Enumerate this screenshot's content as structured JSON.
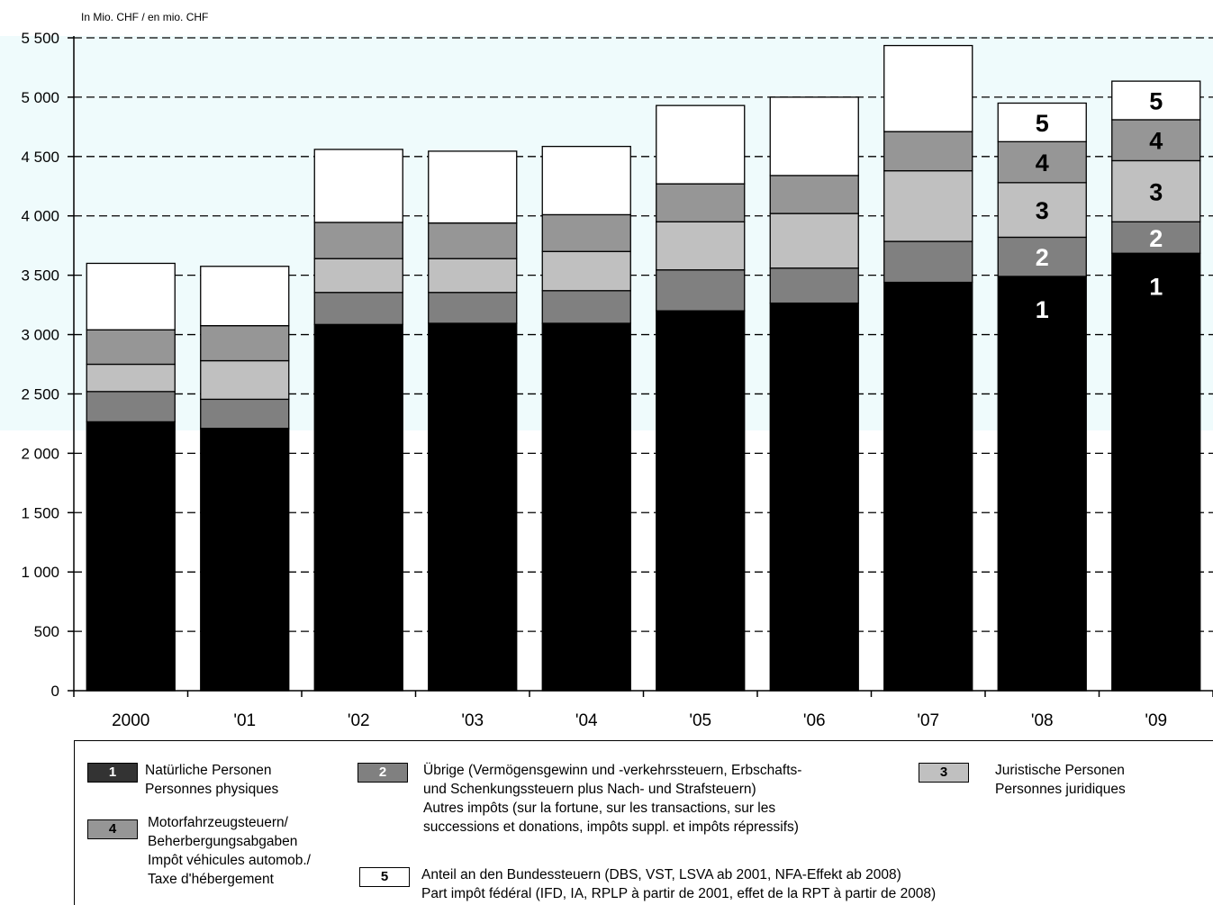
{
  "chart_data": {
    "type": "bar",
    "stacked": true,
    "unit_label": "In Mio. CHF  / en mio. CHF",
    "categories": [
      "2000",
      "'01",
      "'02",
      "'03",
      "'04",
      "'05",
      "'06",
      "'07",
      "'08",
      "'09"
    ],
    "ylim": [
      0,
      5500
    ],
    "yticks": [
      "0",
      "500",
      "1 000",
      "1 500",
      "2 000",
      "2 500",
      "3 000",
      "3 500",
      "4 000",
      "4 500",
      "5 000",
      "5 500"
    ],
    "grid": "dashed-horizontal",
    "series": [
      {
        "name": "1",
        "color": "#000000",
        "values": [
          2265,
          2210,
          3085,
          3095,
          3095,
          3200,
          3265,
          3440,
          3490,
          3685
        ]
      },
      {
        "name": "2",
        "color": "#808080",
        "values": [
          255,
          245,
          270,
          260,
          275,
          345,
          295,
          345,
          330,
          265
        ]
      },
      {
        "name": "3",
        "color": "#c0c0c0",
        "values": [
          230,
          325,
          285,
          285,
          330,
          405,
          460,
          595,
          460,
          515
        ]
      },
      {
        "name": "4",
        "color": "#969696",
        "values": [
          290,
          295,
          305,
          300,
          310,
          320,
          320,
          330,
          345,
          345
        ]
      },
      {
        "name": "5",
        "color": "#ffffff",
        "values": [
          560,
          500,
          615,
          605,
          575,
          660,
          660,
          725,
          325,
          325
        ]
      }
    ],
    "bar_labels": [
      {
        "category": "'08",
        "labels": [
          "1",
          "2",
          "3",
          "4",
          "5"
        ],
        "colors": [
          "#ffffff",
          "#ffffff",
          "#000000",
          "#000000",
          "#000000"
        ]
      },
      {
        "category": "'09",
        "labels": [
          "1",
          "2",
          "3",
          "4",
          "5"
        ],
        "colors": [
          "#ffffff",
          "#ffffff",
          "#000000",
          "#000000",
          "#000000"
        ]
      }
    ],
    "shaded_band_color": "#effbfc"
  },
  "legend": [
    {
      "num": "1",
      "fill": "#333333",
      "num_color": "#ffffff",
      "lines": [
        "Natürliche Personen",
        "Personnes physiques"
      ]
    },
    {
      "num": "2",
      "fill": "#808080",
      "num_color": "#ffffff",
      "lines": [
        "Übrige (Vermögensgewinn und -verkehrssteuern, Erbschafts-",
        "und Schenkungssteuern plus Nach- und Strafsteuern)",
        "Autres impôts (sur la fortune, sur les transactions, sur les",
        "successions et donations, impôts suppl. et  impôts répressifs)"
      ]
    },
    {
      "num": "3",
      "fill": "#c0c0c0",
      "num_color": "#000000",
      "lines": [
        "Juristische Personen",
        "Personnes juridiques"
      ]
    },
    {
      "num": "4",
      "fill": "#969696",
      "num_color": "#000000",
      "lines": [
        "Motorfahrzeugsteuern/",
        "Beherbergungsabgaben",
        "Impôt véhicules automob./",
        "Taxe d'hébergement"
      ]
    },
    {
      "num": "5",
      "fill": "#ffffff",
      "num_color": "#000000",
      "lines": [
        "Anteil an den Bundessteuern (DBS, VST, LSVA ab 2001, NFA-Effekt ab 2008)",
        "Part impôt fédéral (IFD, IA, RPLP à partir de 2001, effet de la RPT à partir de 2008)"
      ]
    }
  ]
}
